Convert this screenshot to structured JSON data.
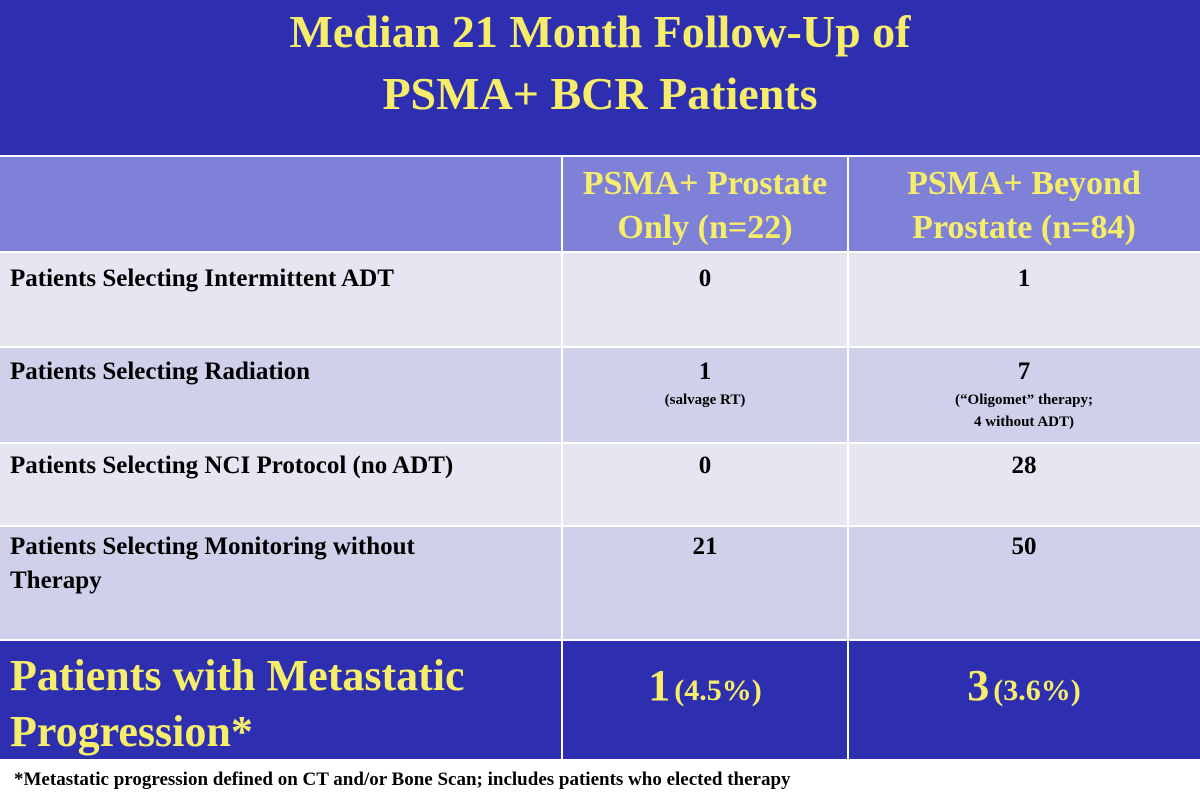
{
  "title": {
    "line1": "Median 21 Month Follow-Up of",
    "line2": "PSMA+ BCR Patients"
  },
  "columns": [
    {
      "line1": "PSMA+ Prostate",
      "line2": "Only (n=22)"
    },
    {
      "line1": "PSMA+ Beyond",
      "line2": "Prostate (n=84)"
    }
  ],
  "rows": [
    {
      "label": "Patients Selecting Intermittent ADT",
      "col1": "0",
      "col2": "1"
    },
    {
      "label": "Patients Selecting Radiation",
      "col1": "1",
      "col1_note": "(salvage RT)",
      "col2": "7",
      "col2_note1": "(“Oligomet” therapy;",
      "col2_note2": "4 without ADT)"
    },
    {
      "label": "Patients Selecting NCI Protocol (no ADT)",
      "col1": "0",
      "col2": "28"
    },
    {
      "label_line1": "Patients Selecting Monitoring without",
      "label_line2": "Therapy",
      "col1": "21",
      "col2": "50"
    }
  ],
  "final": {
    "label_line1": "Patients with Metastatic",
    "label_line2": "Progression*",
    "col1_value": "1",
    "col1_pct": "(4.5%)",
    "col2_value": "3",
    "col2_pct": "(3.6%)"
  },
  "footnote": "*Metastatic progression defined on CT and/or Bone Scan; includes patients who elected therapy",
  "colors": {
    "title_band": "#2e2fb0",
    "title_text": "#f6ee6a",
    "header_row": "#7f80d8",
    "row_light": "#e6e6f3",
    "row_mid": "#cfd0ea"
  }
}
